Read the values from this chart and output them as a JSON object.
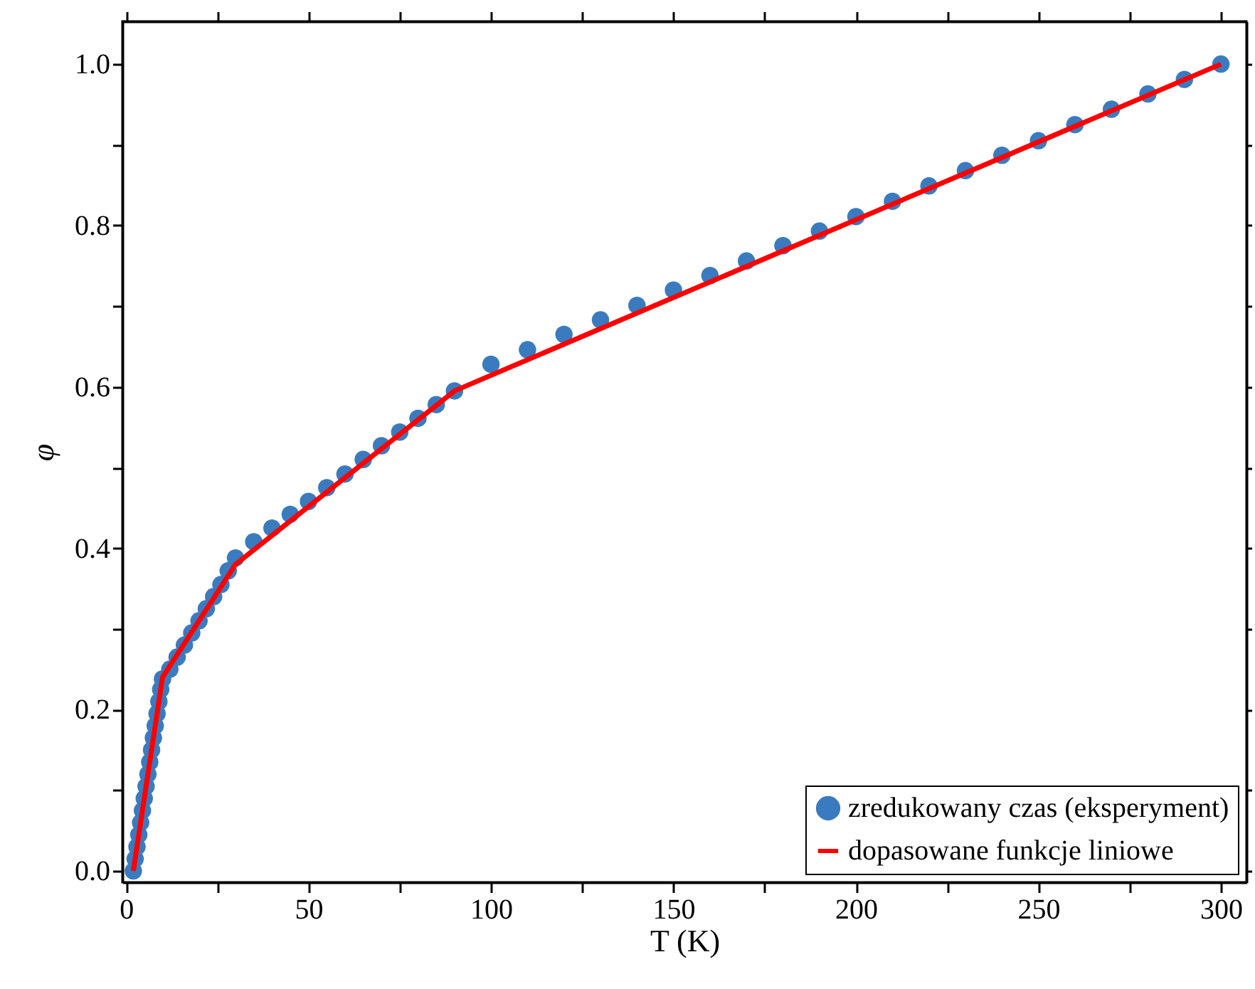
{
  "chart_data": {
    "type": "scatter",
    "xlabel": "T (K)",
    "ylabel": "φ",
    "xlim": [
      -1,
      307
    ],
    "ylim": [
      -0.014,
      1.053
    ],
    "xticks": [
      0,
      {
        "value": 25,
        "label": null
      },
      50,
      {
        "value": 75,
        "label": null
      },
      100,
      {
        "value": 125,
        "label": null
      },
      150,
      {
        "value": 175,
        "label": null
      },
      200,
      {
        "value": 225,
        "label": null
      },
      250,
      {
        "value": 275,
        "label": null
      },
      300
    ],
    "yticks": [
      {
        "value": 0,
        "label": "0.0"
      },
      {
        "value": 0.1,
        "label": null
      },
      0.2,
      {
        "value": 0.3,
        "label": null
      },
      0.4,
      {
        "value": 0.5,
        "label": null
      },
      0.6,
      {
        "value": 0.7,
        "label": null
      },
      0.8,
      {
        "value": 0.9,
        "label": null
      },
      {
        "value": 1,
        "label": "1.0"
      }
    ],
    "grid": false,
    "legend": "bottom right",
    "marker": "circle",
    "series": [
      {
        "name": "zredukowany czas (eksperyment)",
        "type": "scatter",
        "color": "#3a7bbf",
        "x": [
          2,
          2.5,
          3,
          3.5,
          4,
          4.5,
          5,
          5.5,
          6,
          6.5,
          7,
          7.5,
          8,
          8.5,
          9,
          9.5,
          10,
          12,
          14,
          16,
          18,
          20,
          22,
          24,
          26,
          28,
          30,
          35,
          40,
          45,
          50,
          55,
          60,
          65,
          70,
          75,
          80,
          85,
          90,
          100,
          110,
          120,
          130,
          140,
          150,
          160,
          170,
          180,
          190,
          200,
          210,
          220,
          230,
          240,
          250,
          260,
          270,
          280,
          290,
          300
        ],
        "values": [
          0,
          0.015,
          0.03,
          0.045,
          0.06,
          0.075,
          0.09,
          0.105,
          0.12,
          0.135,
          0.15,
          0.165,
          0.18,
          0.195,
          0.21,
          0.225,
          0.238,
          0.25,
          0.265,
          0.28,
          0.295,
          0.31,
          0.325,
          0.34,
          0.355,
          0.372,
          0.388,
          0.408,
          0.425,
          0.442,
          0.458,
          0.475,
          0.492,
          0.51,
          0.527,
          0.544,
          0.561,
          0.578,
          0.595,
          0.628,
          0.646,
          0.665,
          0.683,
          0.701,
          0.72,
          0.738,
          0.756,
          0.775,
          0.793,
          0.811,
          0.83,
          0.849,
          0.868,
          0.887,
          0.905,
          0.925,
          0.944,
          0.963,
          0.981,
          1.0
        ]
      },
      {
        "name": "dopasowane funkcje liniowe",
        "type": "line",
        "color": "#ff0000",
        "line_style": "solid",
        "marker": "none",
        "x": [
          2,
          10,
          30,
          90,
          300
        ],
        "values": [
          0,
          0.24,
          0.38,
          0.595,
          1.0
        ]
      }
    ]
  }
}
